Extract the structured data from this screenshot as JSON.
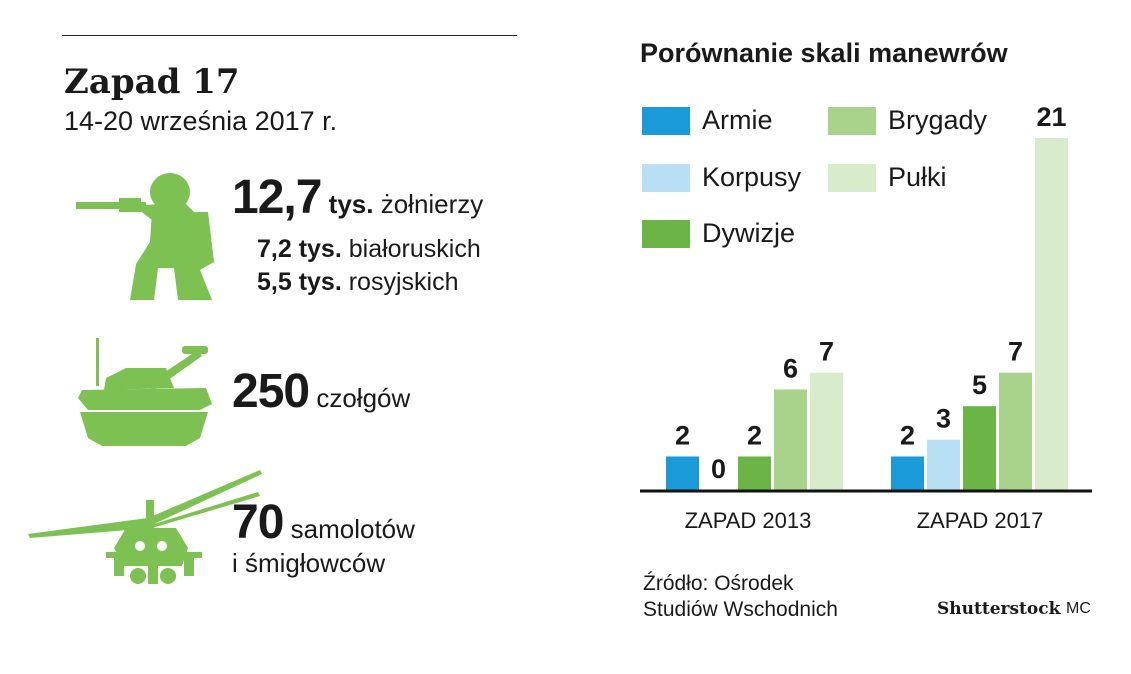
{
  "header": {
    "title": "Zapad 17",
    "dates": "14-20 września 2017 r."
  },
  "soldiers": {
    "number": "12,7",
    "unit": "tys.",
    "label": "żołnierzy",
    "breakdown": [
      {
        "number": "7,2 tys.",
        "label": "białoruskich"
      },
      {
        "number": "5,5 tys.",
        "label": "rosyjskich"
      }
    ]
  },
  "tanks": {
    "number": "250",
    "label": "czołgów"
  },
  "aircraft": {
    "number": "70",
    "label_line1": "samolotów",
    "label_line2": "i śmigłowców"
  },
  "colors": {
    "icon_green": "#7cc151",
    "armie": "#1a9ad9",
    "korpusy": "#b9dff4",
    "dywizje": "#6ab545",
    "brygady": "#a9d38b",
    "pulki": "#d8ebcb"
  },
  "chart_data": {
    "type": "bar",
    "title": "Porównanie skali manewrów",
    "categories": [
      "ZAPAD 2013",
      "ZAPAD 2017"
    ],
    "series": [
      {
        "name": "Armie",
        "values": [
          2,
          2
        ]
      },
      {
        "name": "Korpusy",
        "values": [
          0,
          3
        ]
      },
      {
        "name": "Dywizje",
        "values": [
          2,
          5
        ]
      },
      {
        "name": "Brygady",
        "values": [
          6,
          7
        ]
      },
      {
        "name": "Pułki",
        "values": [
          7,
          21
        ]
      }
    ],
    "ylim": [
      0,
      21
    ],
    "xlabel": "",
    "ylabel": "",
    "legend_position": "top-left"
  },
  "footer": {
    "source_line1": "Źródło: Ośrodek",
    "source_line2": "Studiów Wschodnich",
    "credit": "Shutterstock",
    "author": "MC"
  }
}
